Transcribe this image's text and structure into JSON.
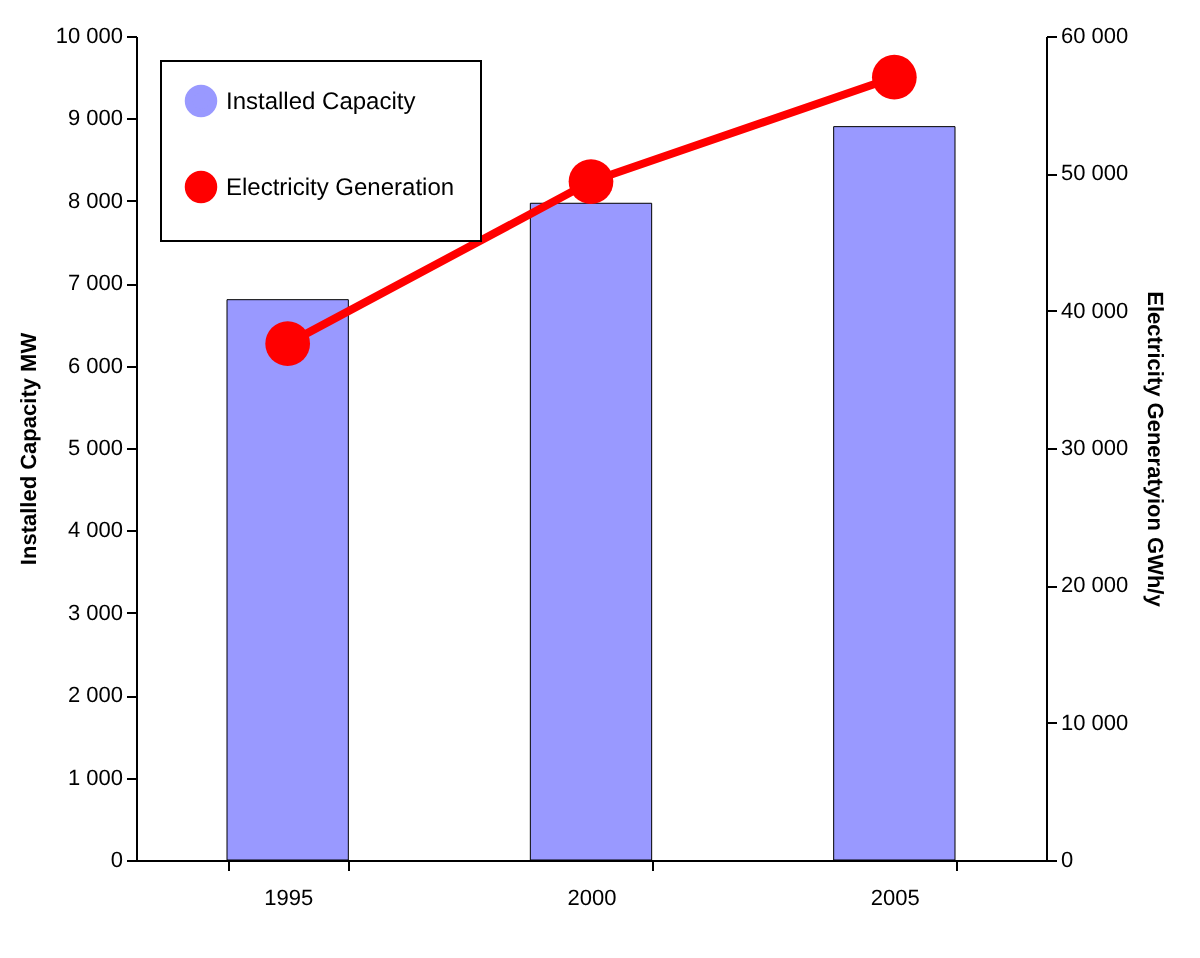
{
  "chart_data": {
    "type": "bar",
    "categories": [
      "1995",
      "2000",
      "2005"
    ],
    "ylabel": "Installed Capacity MW",
    "y2label": "Electricity Generatyion GWh/y",
    "series": [
      {
        "name": "Installed Capacity",
        "color": "#9999ff",
        "values": [
          6800,
          7970,
          8900
        ]
      },
      {
        "name": "Electricity Generation",
        "type": "line",
        "axis": "y2",
        "color": "#ff0000",
        "values": [
          37600,
          49400,
          57000
        ]
      }
    ],
    "ylim": [
      0,
      10000
    ],
    "yticks": [
      {
        "value": 0,
        "label": "0"
      },
      {
        "value": 1000,
        "label": "1 000"
      },
      {
        "value": 2000,
        "label": "2 000"
      },
      {
        "value": 3000,
        "label": "3 000"
      },
      {
        "value": 4000,
        "label": "4 000"
      },
      {
        "value": 5000,
        "label": "5 000"
      },
      {
        "value": 6000,
        "label": "6 000"
      },
      {
        "value": 7000,
        "label": "7 000"
      },
      {
        "value": 8000,
        "label": "8 000"
      },
      {
        "value": 9000,
        "label": "9 000"
      },
      {
        "value": 10000,
        "label": "10 000"
      }
    ],
    "y2lim": [
      0,
      60000
    ],
    "y2ticks": [
      {
        "value": 0,
        "label": "0"
      },
      {
        "value": 10000,
        "label": "10 000"
      },
      {
        "value": 20000,
        "label": "20 000"
      },
      {
        "value": 30000,
        "label": "30 000"
      },
      {
        "value": 40000,
        "label": "40 000"
      },
      {
        "value": 50000,
        "label": "50 000"
      },
      {
        "value": 60000,
        "label": "60 000"
      }
    ],
    "marker": "circle",
    "legend": "top left",
    "grid": false
  }
}
